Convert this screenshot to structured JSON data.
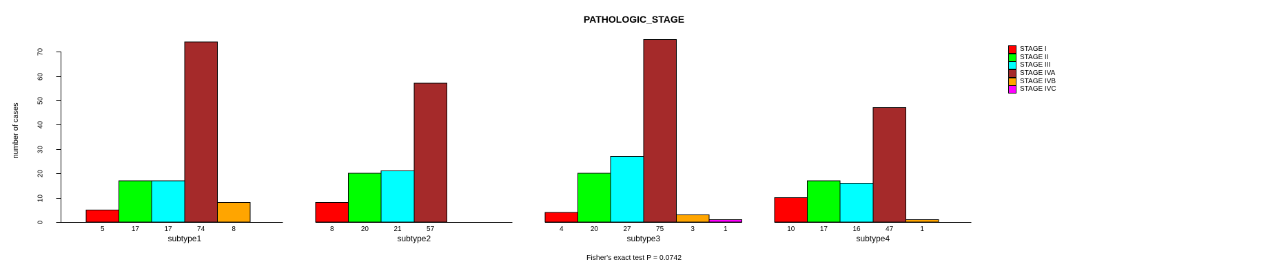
{
  "chart_data": {
    "type": "bar",
    "title": "PATHOLOGIC_STAGE",
    "xlabel": "",
    "ylabel": "number of cases",
    "ylim": [
      0,
      77
    ],
    "yticks": [
      0,
      10,
      20,
      30,
      40,
      50,
      60,
      70
    ],
    "grid": false,
    "legend_position": "right-outside",
    "bar_border_color": "#000000",
    "annotation": "Fisher's exact test P = 0.0742",
    "value_labels_shown": true,
    "categories": [
      "subtype1",
      "subtype2",
      "subtype3",
      "subtype4"
    ],
    "series": [
      {
        "name": "STAGE I",
        "color": "#FF0000",
        "values": [
          5,
          8,
          4,
          10
        ]
      },
      {
        "name": "STAGE II",
        "color": "#00FF00",
        "values": [
          17,
          20,
          20,
          17
        ]
      },
      {
        "name": "STAGE III",
        "color": "#00FFFF",
        "values": [
          17,
          21,
          27,
          16
        ]
      },
      {
        "name": "STAGE IVA",
        "color": "#A52A2A",
        "values": [
          74,
          57,
          75,
          47
        ]
      },
      {
        "name": "STAGE IVB",
        "color": "#FFA500",
        "values": [
          8,
          0,
          3,
          1
        ]
      },
      {
        "name": "STAGE IVC",
        "color": "#FF00FF",
        "values": [
          0,
          0,
          1,
          0
        ]
      }
    ]
  }
}
